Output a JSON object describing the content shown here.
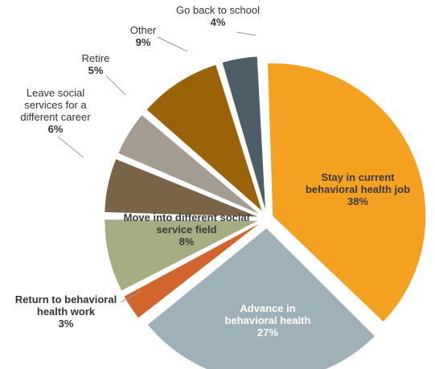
{
  "chart_data": {
    "type": "pie",
    "title": "",
    "slices": [
      {
        "label_lines": [
          "Stay in current",
          "behavioral health job"
        ],
        "value_label": "38%",
        "value": 38,
        "color": "#F4A020"
      },
      {
        "label_lines": [
          "Advance in",
          "behavioral health"
        ],
        "value_label": "27%",
        "value": 27,
        "color": "#9EB1B9"
      },
      {
        "label_lines": [
          "Return to behavioral",
          "health work"
        ],
        "value_label": "3%",
        "value": 3,
        "color": "#D2652C"
      },
      {
        "label_lines": [
          "Move into different social",
          "service field"
        ],
        "value_label": "8%",
        "value": 8,
        "color": "#A7AD83"
      },
      {
        "label_lines": [
          "Leave social",
          "services for a",
          "different career"
        ],
        "value_label": "6%",
        "value": 6,
        "color": "#7A6447"
      },
      {
        "label_lines": [
          "Retire"
        ],
        "value_label": "5%",
        "value": 5,
        "color": "#A49C91"
      },
      {
        "label_lines": [
          "Other"
        ],
        "value_label": "9%",
        "value": 9,
        "color": "#9B6309"
      },
      {
        "label_lines": [
          "Go back to school"
        ],
        "value_label": "4%",
        "value": 4,
        "color": "#4D5E69"
      }
    ]
  }
}
